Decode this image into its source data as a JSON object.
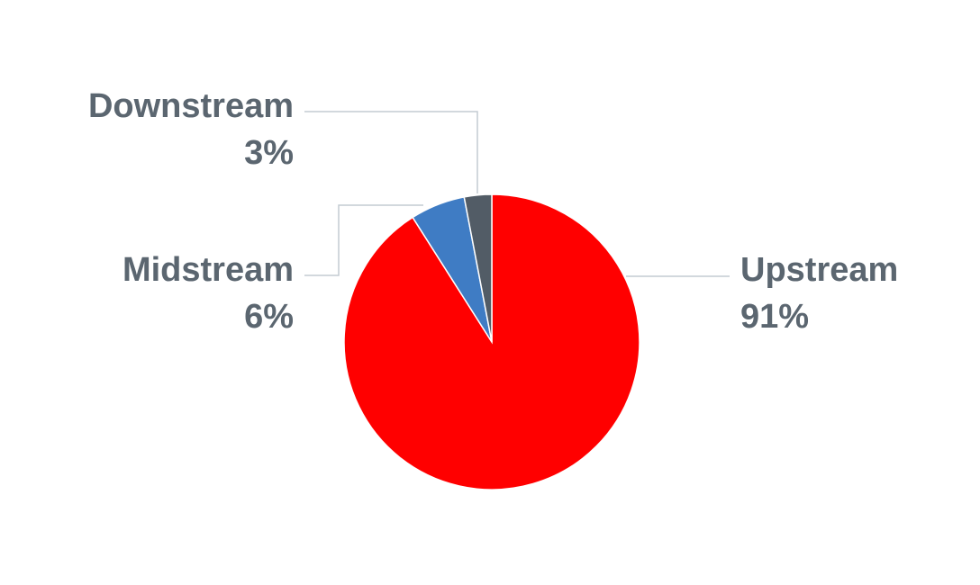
{
  "chart_data": {
    "type": "pie",
    "categories": [
      "Upstream",
      "Midstream",
      "Downstream"
    ],
    "values": [
      91,
      6,
      3
    ],
    "value_labels": [
      "91%",
      "6%",
      "3%"
    ],
    "colors": [
      "#ff0000",
      "#3f7cc4",
      "#525c66"
    ]
  }
}
